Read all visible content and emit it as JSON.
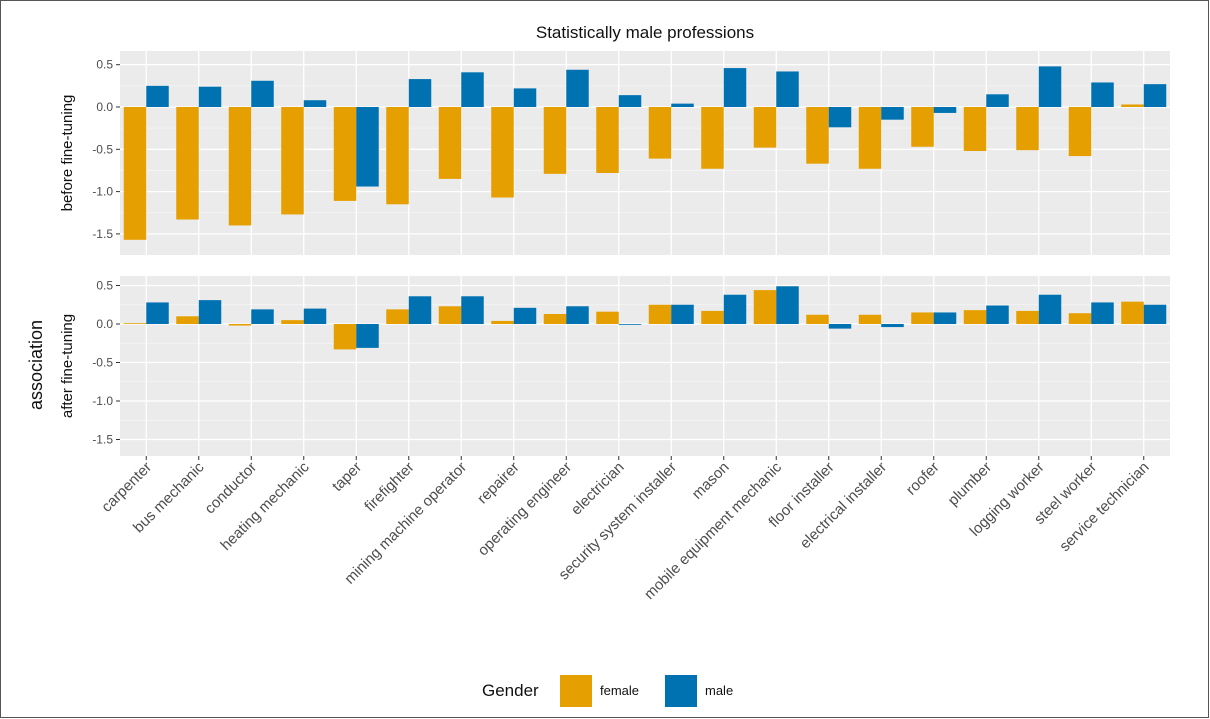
{
  "chart_data": {
    "type": "bar",
    "title": "Statistically male professions",
    "ylabel": "association",
    "categories": [
      "carpenter",
      "bus mechanic",
      "conductor",
      "heating mechanic",
      "taper",
      "firefighter",
      "mining machine operator",
      "repairer",
      "operating engineer",
      "electrician",
      "security system installer",
      "mason",
      "mobile equipment mechanic",
      "floor installer",
      "electrical installer",
      "roofer",
      "plumber",
      "logging worker",
      "steel worker",
      "service technician"
    ],
    "yticks": [
      "0.5",
      "0.0",
      "-0.5",
      "-1.0",
      "-1.5"
    ],
    "ylim": [
      -1.7,
      0.6
    ],
    "grid": true,
    "legend": {
      "title": "Gender",
      "position": "bottom",
      "entries": [
        {
          "name": "female",
          "color": "#E69F00"
        },
        {
          "name": "male",
          "color": "#0072B2"
        }
      ]
    },
    "panels": [
      {
        "label": "before fine-tuning",
        "series": [
          {
            "name": "female",
            "values": [
              -1.57,
              -1.33,
              -1.4,
              -1.27,
              -1.11,
              -1.15,
              -0.85,
              -1.07,
              -0.79,
              -0.78,
              -0.61,
              -0.73,
              -0.48,
              -0.67,
              -0.73,
              -0.47,
              -0.52,
              -0.51,
              -0.58,
              0.03
            ]
          },
          {
            "name": "male",
            "values": [
              0.25,
              0.24,
              0.31,
              0.08,
              -0.94,
              0.33,
              0.41,
              0.22,
              0.44,
              0.14,
              0.04,
              0.46,
              0.42,
              -0.24,
              -0.15,
              -0.07,
              0.15,
              0.48,
              0.29,
              0.27
            ]
          }
        ]
      },
      {
        "label": "after fine-tuning",
        "series": [
          {
            "name": "female",
            "values": [
              0.01,
              0.1,
              -0.02,
              0.05,
              -0.33,
              0.19,
              0.23,
              0.04,
              0.13,
              0.16,
              0.25,
              0.17,
              0.44,
              0.12,
              0.12,
              0.15,
              0.18,
              0.17,
              0.14,
              0.29
            ]
          },
          {
            "name": "male",
            "values": [
              0.28,
              0.31,
              0.19,
              0.2,
              -0.31,
              0.36,
              0.36,
              0.21,
              0.23,
              -0.01,
              0.25,
              0.38,
              0.49,
              -0.06,
              -0.04,
              0.15,
              0.24,
              0.38,
              0.28,
              0.25
            ]
          }
        ]
      }
    ]
  }
}
